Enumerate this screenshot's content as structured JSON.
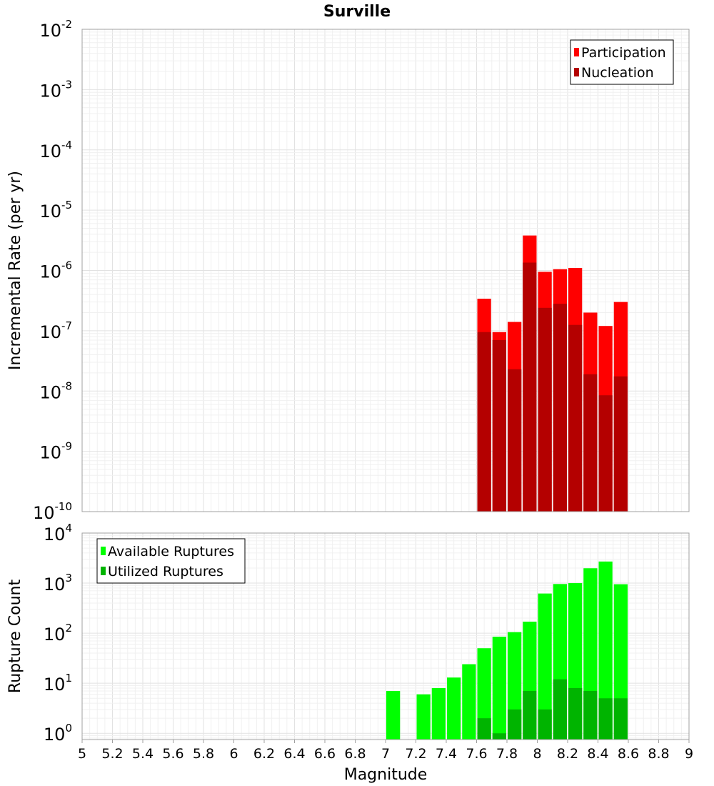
{
  "chart_data": [
    {
      "type": "bar",
      "title": "Surville",
      "ylabel": "Incremental Rate (per yr)",
      "xlabel": "",
      "log_y": true,
      "xlim": [
        5,
        9
      ],
      "ylim": [
        1e-10,
        0.01
      ],
      "grid": true,
      "legend": "top-right",
      "y_tick_exponents": [
        "-10",
        "-9",
        "-8",
        "-7",
        "-6",
        "-5",
        "-4",
        "-3",
        "-2"
      ],
      "y_tick_base": "10",
      "x": [
        7.65,
        7.75,
        7.85,
        7.95,
        8.05,
        8.15,
        8.25,
        8.35,
        8.45,
        8.55
      ],
      "series": [
        {
          "name": "Participation",
          "color": "#ff0000",
          "values": [
            3.4e-07,
            9.5e-08,
            1.4e-07,
            3.8e-06,
            9.5e-07,
            1.05e-06,
            1.1e-06,
            2e-07,
            1.2e-07,
            3e-07
          ]
        },
        {
          "name": "Nucleation",
          "color": "#b40000",
          "values": [
            9.5e-08,
            7e-08,
            2.3e-08,
            1.35e-06,
            2.4e-07,
            2.8e-07,
            1.25e-07,
            1.9e-08,
            8.5e-09,
            1.75e-08
          ]
        }
      ]
    },
    {
      "type": "bar",
      "title": "",
      "ylabel": "Rupture Count",
      "xlabel": "Magnitude",
      "log_y": true,
      "xlim": [
        5,
        9
      ],
      "ylim": [
        0.75,
        10000
      ],
      "grid": true,
      "legend": "top-left",
      "y_tick_exponents": [
        "0",
        "1",
        "2",
        "3",
        "4"
      ],
      "y_tick_base": "10",
      "x_ticks": [
        "5",
        "5.2",
        "5.4",
        "5.6",
        "5.8",
        "6",
        "6.2",
        "6.4",
        "6.6",
        "6.8",
        "7",
        "7.2",
        "7.4",
        "7.6",
        "7.8",
        "8",
        "8.2",
        "8.4",
        "8.6",
        "8.8",
        "9"
      ],
      "x": [
        7.05,
        7.25,
        7.35,
        7.45,
        7.55,
        7.65,
        7.75,
        7.85,
        7.95,
        8.05,
        8.15,
        8.25,
        8.35,
        8.45,
        8.55
      ],
      "series": [
        {
          "name": "Available Ruptures",
          "color": "#00ff00",
          "values": [
            7,
            6,
            8,
            13,
            24,
            50,
            85,
            105,
            170,
            620,
            960,
            1000,
            1980,
            2700,
            950
          ]
        },
        {
          "name": "Utilized Ruptures",
          "color": "#00b400",
          "values": [
            0,
            0,
            0,
            0,
            0,
            2,
            1,
            3,
            7,
            3,
            12,
            8,
            7,
            5,
            5
          ]
        }
      ]
    }
  ]
}
